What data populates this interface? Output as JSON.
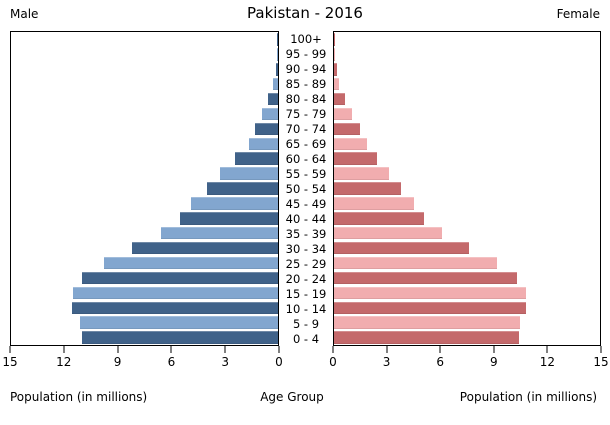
{
  "chart_data": {
    "type": "bar",
    "variant": "population_pyramid",
    "title": "Pakistan - 2016",
    "left_header": "Male",
    "right_header": "Female",
    "xlabel_left": "Population (in millions)",
    "xlabel_center": "Age Group",
    "xlabel_right": "Population (in millions)",
    "unit": "millions",
    "grid": false,
    "legend": "none",
    "axis": {
      "max": 15,
      "male_ticks": [
        15,
        12,
        9,
        6,
        3,
        0
      ],
      "female_ticks": [
        0,
        3,
        6,
        9,
        12,
        15
      ]
    },
    "age_groups": [
      "100+",
      "95 - 99",
      "90 - 94",
      "85 - 89",
      "80 - 84",
      "75 - 79",
      "70 - 74",
      "65 - 69",
      "60 - 64",
      "55 - 59",
      "50 - 54",
      "45 - 49",
      "40 - 44",
      "35 - 39",
      "30 - 34",
      "25 - 29",
      "20 - 24",
      "15 - 19",
      "10 - 14",
      "5 - 9",
      "0 - 4"
    ],
    "series": [
      {
        "name": "Male",
        "side": "left",
        "values": [
          0.02,
          0.05,
          0.12,
          0.3,
          0.55,
          0.9,
          1.3,
          1.65,
          2.4,
          3.25,
          4.0,
          4.9,
          5.5,
          6.6,
          8.2,
          9.8,
          11.0,
          11.5,
          11.6,
          11.1,
          11.0
        ]
      },
      {
        "name": "Female",
        "side": "right",
        "values": [
          0.03,
          0.07,
          0.15,
          0.3,
          0.6,
          1.0,
          1.45,
          1.85,
          2.45,
          3.1,
          3.8,
          4.5,
          5.1,
          6.1,
          7.6,
          9.2,
          10.3,
          10.85,
          10.8,
          10.5,
          10.45
        ]
      }
    ],
    "colors": {
      "male_dark": "#406289",
      "male_light": "#82A6CF",
      "female_dark": "#C4696B",
      "female_light": "#F1ADAF",
      "axis": "#000000",
      "background": "#FFFFFF"
    }
  }
}
